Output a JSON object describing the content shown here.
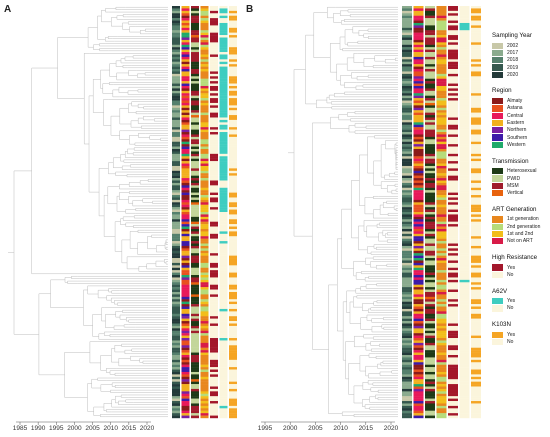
{
  "panels": [
    {
      "label": "A",
      "axis_ticks": [
        "1985",
        "1990",
        "1995",
        "2000",
        "2005",
        "2010",
        "2015",
        "2020"
      ]
    },
    {
      "label": "B",
      "axis_ticks": [
        "1995",
        "2000",
        "2005",
        "2010",
        "2015",
        "2020"
      ]
    }
  ],
  "legend": [
    {
      "title": "Sampling Year",
      "items": [
        {
          "label": "2002",
          "color": "#c8c8a8"
        },
        {
          "label": "2017",
          "color": "#8aab8e"
        },
        {
          "label": "2018",
          "color": "#55806d"
        },
        {
          "label": "2019",
          "color": "#35584e"
        },
        {
          "label": "2020",
          "color": "#233a3a"
        }
      ]
    },
    {
      "title": "Region",
      "items": [
        {
          "label": "Almaty",
          "color": "#8b1a1a"
        },
        {
          "label": "Astana",
          "color": "#e8511f"
        },
        {
          "label": "Central",
          "color": "#e8195a"
        },
        {
          "label": "Eastern",
          "color": "#f2b01e"
        },
        {
          "label": "Northern",
          "color": "#7a1fa2"
        },
        {
          "label": "Southern",
          "color": "#3d1aa8"
        },
        {
          "label": "Western",
          "color": "#1faa6a"
        }
      ]
    },
    {
      "title": "Transmission",
      "items": [
        {
          "label": "Heterosexual",
          "color": "#1e3a17"
        },
        {
          "label": "PWID",
          "color": "#c3d69b"
        },
        {
          "label": "MSM",
          "color": "#a01c2c"
        },
        {
          "label": "Vertical",
          "color": "#e8620d"
        }
      ]
    },
    {
      "title": "ART Generation",
      "items": [
        {
          "label": "1st generation",
          "color": "#e8871e"
        },
        {
          "label": "2nd generation",
          "color": "#b6dc7a"
        },
        {
          "label": "1st and 2nd",
          "color": "#f2be1a"
        },
        {
          "label": "Not on ART",
          "color": "#d81b48"
        }
      ]
    },
    {
      "title": "High Resistance",
      "items": [
        {
          "label": "Yes",
          "color": "#a3172b"
        },
        {
          "label": "No",
          "color": "#fbf5dc"
        }
      ]
    },
    {
      "title": "A62V",
      "items": [
        {
          "label": "Yes",
          "color": "#3ecdc0"
        },
        {
          "label": "No",
          "color": "#fbf5dc"
        }
      ]
    },
    {
      "title": "K103N",
      "items": [
        {
          "label": "Yes",
          "color": "#f5a524"
        },
        {
          "label": "No",
          "color": "#fbf5dc"
        }
      ]
    }
  ]
}
